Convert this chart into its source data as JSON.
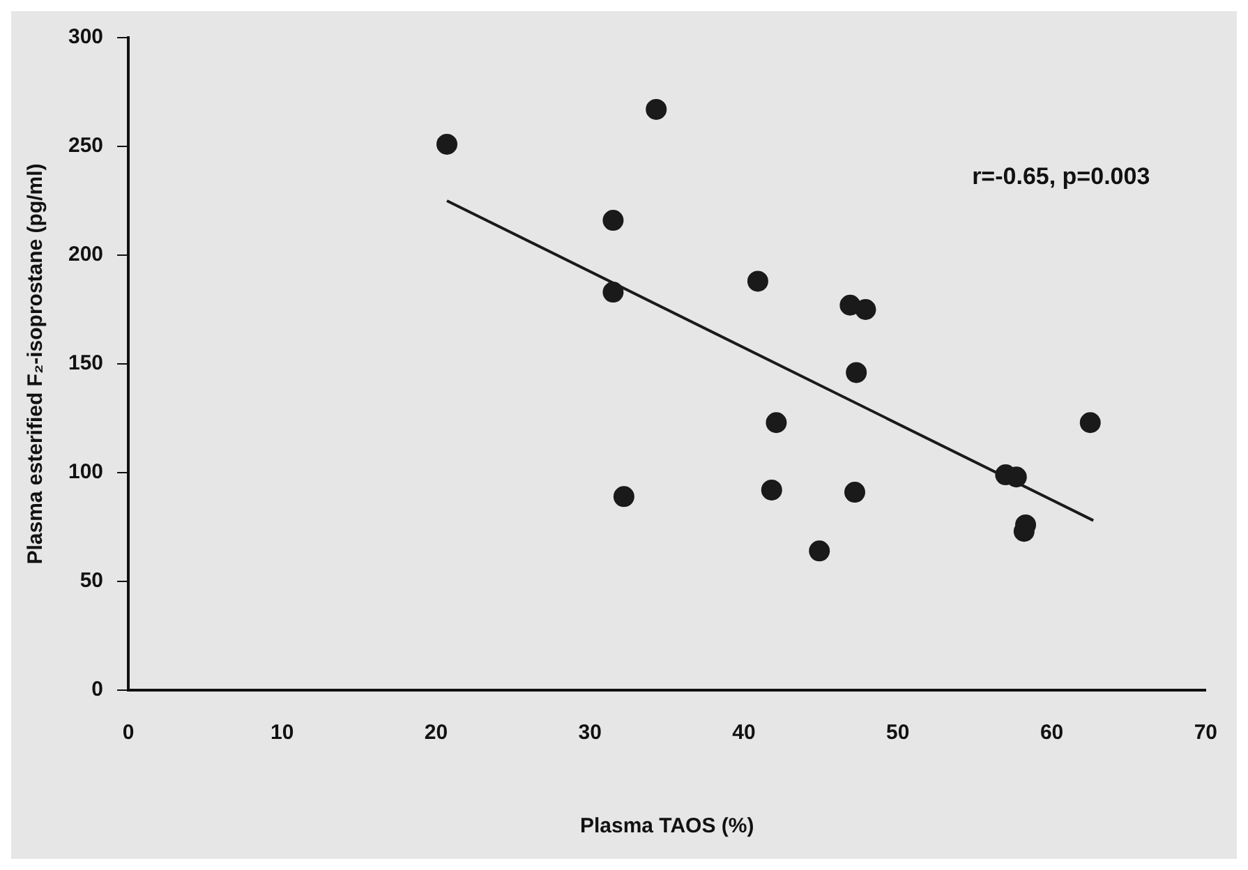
{
  "chart_data": {
    "type": "scatter",
    "xlabel": "Plasma TAOS (%)",
    "ylabel": "Plasma esterified F₂-isoprostane (pg/ml)",
    "x": [
      20.7,
      34.3,
      31.5,
      31.5,
      32.2,
      40.9,
      41.8,
      42.1,
      44.9,
      46.9,
      47.9,
      47.3,
      47.2,
      57.0,
      57.7,
      58.3,
      58.2,
      62.5
    ],
    "xlim": [
      0,
      70
    ],
    "xticks": [
      0,
      10,
      20,
      30,
      40,
      50,
      60,
      70
    ],
    "ylim": [
      0,
      300
    ],
    "yticks": [
      0,
      50,
      100,
      150,
      200,
      250,
      300
    ],
    "grid": false,
    "legend": false,
    "series": [
      {
        "marker": "circle",
        "color": "#1a1a1a",
        "values": [
          251,
          267,
          216,
          183,
          89,
          188,
          92,
          123,
          64,
          177,
          175,
          146,
          91,
          99,
          98,
          76,
          73,
          123
        ]
      },
      {
        "type": "line",
        "marker": "none",
        "color": "#1a1a1a",
        "x": [
          20.7,
          62.7
        ],
        "values": [
          225,
          78
        ]
      }
    ],
    "annotations": [
      "r=-0.65, p=0.003"
    ]
  }
}
